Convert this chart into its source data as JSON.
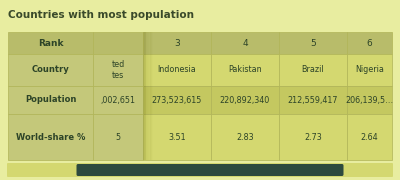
{
  "title": "Countries with most population",
  "title_color": "#3a4a2a",
  "title_fontsize": 7.5,
  "bg_color": "#e8eda0",
  "header_bg": "#b8bc6a",
  "sticky_col_bg": "#c4c87a",
  "data_bg_light": "#d4d870",
  "data_bg_dark": "#c4c860",
  "border_color": "#b0b458",
  "text_color": "#2d4428",
  "scrollbar_track": "#d4d870",
  "scrollbar_thumb": "#2d4a3e",
  "col_headers": [
    "Rank",
    "",
    "3",
    "4",
    "5",
    "6"
  ],
  "col2_partial_country": "ted\ntes",
  "col2_partial_pop": ",002,651",
  "col2_partial_ws": "5",
  "col3": [
    "Indonesia",
    "273,523,615",
    "3.51"
  ],
  "col4": [
    "Pakistan",
    "220,892,340",
    "2.83"
  ],
  "col5": [
    "Brazil",
    "212,559,417",
    "2.73"
  ],
  "col6": [
    "Nigeria",
    "206,139,5…",
    "2.64"
  ],
  "row_labels": [
    "Country",
    "Population",
    "World-share %"
  ]
}
